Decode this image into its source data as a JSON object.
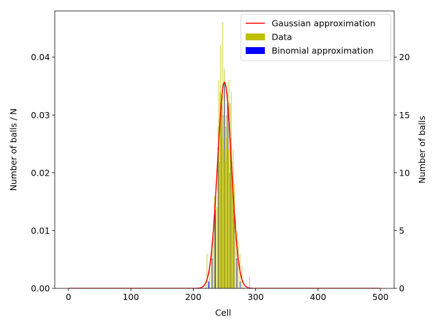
{
  "chart_data": {
    "type": "bar",
    "xlabel": "Cell",
    "ylabel_left": "Number of balls / N",
    "ylabel_right": "Number of balls",
    "xlim": [
      -22,
      522
    ],
    "ylim_left": [
      0,
      0.048
    ],
    "ylim_right": [
      0,
      24
    ],
    "x_ticks": [
      "0",
      "100",
      "200",
      "300",
      "400",
      "500"
    ],
    "y_left_ticks": [
      "0.00",
      "0.01",
      "0.02",
      "0.03",
      "0.04"
    ],
    "y_right_ticks": [
      "0",
      "5",
      "10",
      "15",
      "20"
    ],
    "grid": false,
    "legend_position": "top-right",
    "legend": [
      "Gaussian approximation",
      "Data",
      "Binomial approximation"
    ],
    "colors": {
      "gaussian": "#ff0000",
      "data": "#bfbf00",
      "binomial": "#0000ff"
    },
    "gaussian": {
      "mean": 250,
      "sd": 11.18,
      "n_points": 500,
      "x_range": [
        0,
        499
      ]
    },
    "binomial": {
      "x": [
        220,
        225,
        230,
        235,
        240,
        245,
        250,
        255,
        260,
        265,
        270,
        275,
        280
      ],
      "values": [
        0.0001,
        0.0012,
        0.0052,
        0.0136,
        0.0244,
        0.032,
        0.0356,
        0.032,
        0.0244,
        0.0136,
        0.0052,
        0.0012,
        0.0001
      ]
    },
    "data_series": {
      "x": [
        222,
        226,
        229,
        230,
        232,
        234,
        236,
        238,
        240,
        241,
        242,
        243,
        244,
        245,
        246,
        247,
        248,
        249,
        250,
        251,
        252,
        253,
        254,
        255,
        256,
        257,
        258,
        259,
        260,
        261,
        262,
        263,
        264,
        265,
        266,
        268,
        270,
        272,
        275,
        278,
        290
      ],
      "values": [
        3,
        2,
        3,
        4,
        5,
        8,
        9,
        7,
        14,
        18,
        11,
        17,
        21,
        16,
        13,
        23,
        15,
        12,
        19,
        11,
        14,
        15,
        13,
        17,
        12,
        18,
        10,
        16,
        13,
        17,
        11,
        9,
        12,
        8,
        9,
        6,
        5,
        4,
        3,
        2,
        1
      ]
    }
  }
}
